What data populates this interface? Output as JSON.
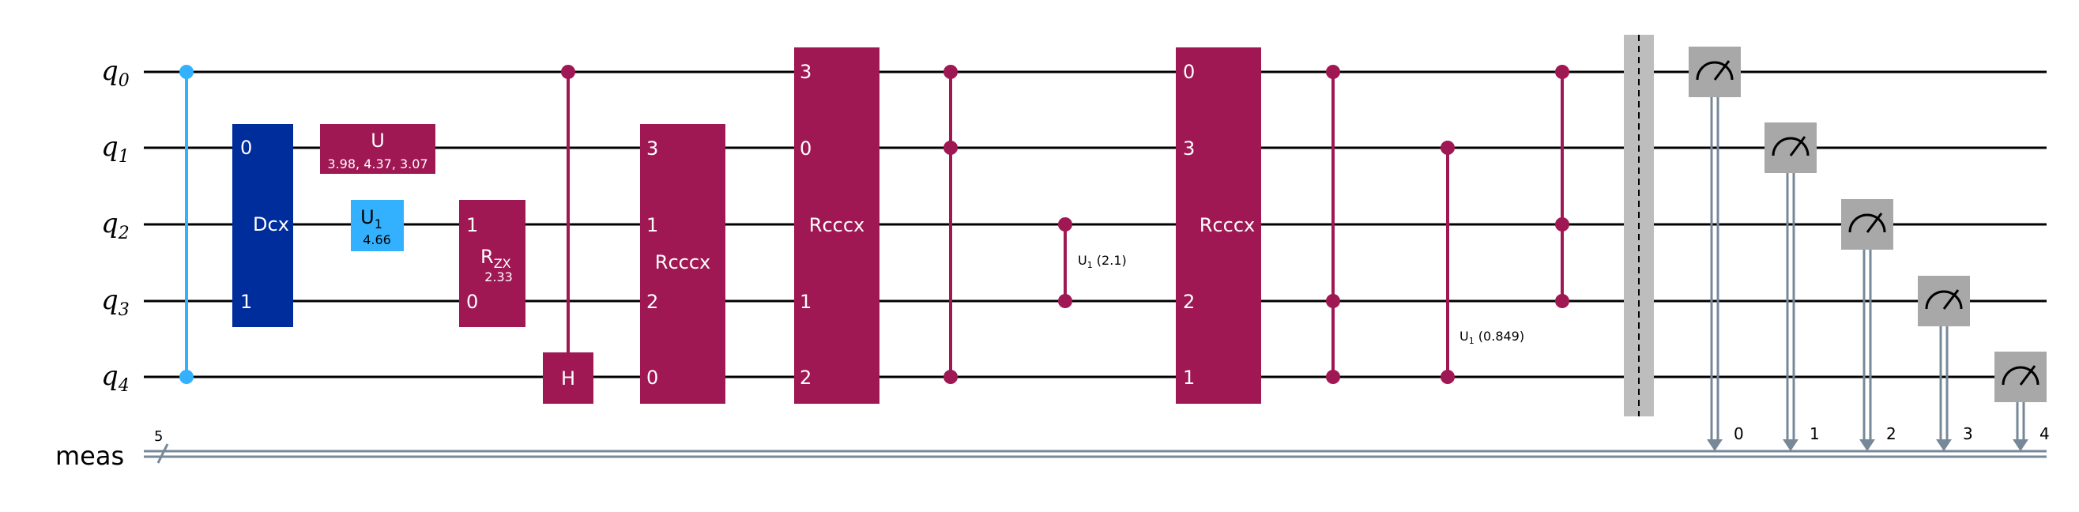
{
  "registers": {
    "qubits": [
      {
        "name": "q",
        "sub": "0"
      },
      {
        "name": "q",
        "sub": "1"
      },
      {
        "name": "q",
        "sub": "2"
      },
      {
        "name": "q",
        "sub": "3"
      },
      {
        "name": "q",
        "sub": "4"
      }
    ],
    "classical": {
      "name": "meas",
      "size": "5"
    }
  },
  "colors": {
    "wire": "#000000",
    "classical_wire": "#778899",
    "cz_blue": "#33b1ff",
    "dcx": "#002d9c",
    "u1": "#33b1ff",
    "magenta": "#9f1853",
    "barrier": "#bdbdbd",
    "measure": "#a8a8a8"
  },
  "gates": {
    "dcx": {
      "label": "Dcx",
      "in0": "0",
      "in1": "1"
    },
    "u": {
      "label": "U",
      "params": "3.98, 4.37, 3.07"
    },
    "u1": {
      "label": "U",
      "sub": "1",
      "param": "4.66"
    },
    "rzx": {
      "label": "R",
      "sub": "ZX",
      "param": "2.33",
      "in1": "1",
      "in0": "0"
    },
    "h": {
      "label": "H"
    },
    "rcccx1": {
      "label": "Rcccx",
      "pins": [
        "3",
        "1",
        "2",
        "0"
      ]
    },
    "rcccx2": {
      "label": "Rcccx",
      "pins": [
        "3",
        "0",
        "",
        "1",
        "2"
      ]
    },
    "cu1a": {
      "label": "U",
      "sub": "1",
      "param": " (2.1)"
    },
    "rcccx3": {
      "label": "Rcccx",
      "pins": [
        "0",
        "3",
        "",
        "2",
        "1"
      ]
    },
    "cu1b": {
      "label": "U",
      "sub": "1",
      "param": " (0.849)"
    }
  },
  "measure_bits": [
    "0",
    "1",
    "2",
    "3",
    "4"
  ]
}
